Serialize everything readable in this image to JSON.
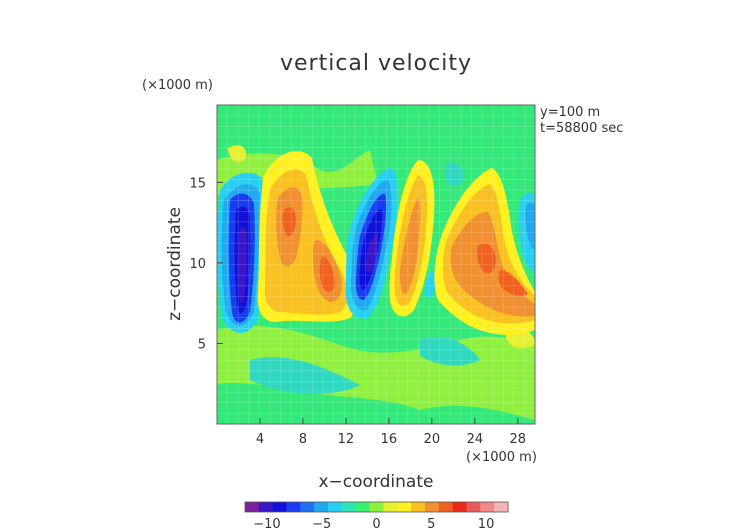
{
  "chart_data": {
    "type": "heatmap",
    "title": "vertical velocity",
    "xlabel": "x−coordinate",
    "ylabel": "z−coordinate",
    "x_unit": "(×1000 m)",
    "y_unit": "(×1000 m)",
    "annotations": [
      "y=100 m",
      "t=58800 sec"
    ],
    "xlim": [
      0,
      29.6
    ],
    "ylim": [
      0,
      19.8
    ],
    "xticks": [
      4,
      8,
      12,
      16,
      20,
      24,
      28
    ],
    "yticks": [
      5,
      10,
      15
    ],
    "colorbar": {
      "range": [
        -12,
        12
      ],
      "ticks": [
        -10,
        -5,
        0,
        5,
        10
      ],
      "colors": [
        "#7a1fa0",
        "#3a16c8",
        "#1010d8",
        "#1a3cf0",
        "#2070f0",
        "#20a8f0",
        "#28d0f0",
        "#30e4b8",
        "#38f070",
        "#8cf040",
        "#e6f030",
        "#fff020",
        "#f8c020",
        "#f09030",
        "#f06020",
        "#e82818",
        "#e85a5a",
        "#f08a8a",
        "#f6b4b4"
      ]
    },
    "features": [
      {
        "kind": "updraft_max",
        "x": 3.5,
        "z": 11.5,
        "value": -10
      },
      {
        "kind": "downdraft",
        "x": 8.0,
        "z": 13.5,
        "value": 4.5
      },
      {
        "kind": "downdraft",
        "x": 10.5,
        "z": 10.0,
        "value": 6
      },
      {
        "kind": "updraft_max",
        "x": 14.2,
        "z": 11.0,
        "value": -10
      },
      {
        "kind": "downdraft",
        "x": 17.5,
        "z": 12.5,
        "value": 4
      },
      {
        "kind": "downdraft",
        "x": 25.0,
        "z": 10.5,
        "value": 6.5
      },
      {
        "kind": "weak",
        "x": 29.2,
        "z": 11.5,
        "value": -3
      }
    ]
  }
}
